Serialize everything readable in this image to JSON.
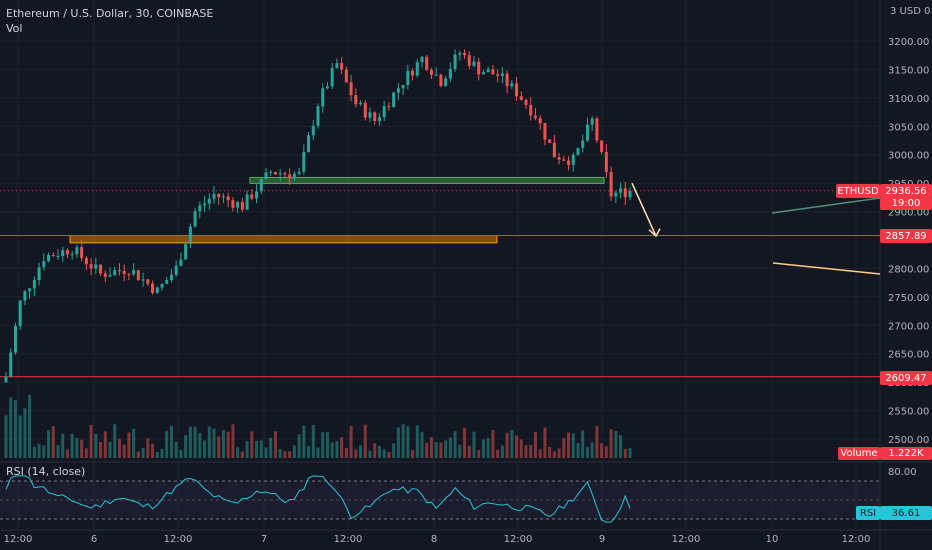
{
  "header": {
    "symbol_title": "Ethereum / U.S. Dollar, 30, COINBASE",
    "volume_label": "Vol",
    "currency_unit": "3 USD 0"
  },
  "rsi": {
    "title": "RSI (14, close)",
    "label": "RSI",
    "value": "36.61",
    "upper_level": "80.00"
  },
  "badges": {
    "symbol": "ETHUSD",
    "price": "2936.56",
    "countdown": "19:00",
    "volume_label": "Volume",
    "volume_value": "1.222K",
    "level_1": "2857.89",
    "level_2": "2609.47"
  },
  "colors": {
    "background": "#131722",
    "up": "#26a69a",
    "down": "#ef5350",
    "rsi_line": "#26c6da",
    "level_line": "#f23645",
    "zone_green": "#4caf50",
    "zone_orange": "#ff9800"
  },
  "chart_data": {
    "type": "candlestick",
    "title": "Ethereum / U.S. Dollar, 30, COINBASE",
    "x_tick_labels": [
      "12:00",
      "6",
      "12:00",
      "7",
      "12:00",
      "8",
      "12:00",
      "9",
      "12:00",
      "10",
      "12:00"
    ],
    "y_tick_labels": [
      "3200.00",
      "3150.00",
      "3100.00",
      "3050.00",
      "3000.00",
      "2950.00",
      "2900.00",
      "2800.00",
      "2750.00",
      "2700.00",
      "2650.00",
      "2600.00",
      "2550.00",
      "2500.00"
    ],
    "ylim": [
      2480,
      3260
    ],
    "last_price": 2936.56,
    "horizontal_levels": [
      2857.89,
      2609.47
    ],
    "zones": [
      {
        "low": 2952,
        "high": 2960,
        "color": "green"
      },
      {
        "low": 2845,
        "high": 2858,
        "color": "orange"
      }
    ],
    "price_path_approx": [
      {
        "t": 0,
        "close": 2610
      },
      {
        "t": 3,
        "close": 2740
      },
      {
        "t": 8,
        "close": 2820
      },
      {
        "t": 14,
        "close": 2835
      },
      {
        "t": 20,
        "close": 2790
      },
      {
        "t": 26,
        "close": 2800
      },
      {
        "t": 32,
        "close": 2760
      },
      {
        "t": 36,
        "close": 2800
      },
      {
        "t": 40,
        "close": 2900
      },
      {
        "t": 44,
        "close": 2930
      },
      {
        "t": 50,
        "close": 2910
      },
      {
        "t": 56,
        "close": 2970
      },
      {
        "t": 62,
        "close": 2965
      },
      {
        "t": 66,
        "close": 3090
      },
      {
        "t": 70,
        "close": 3160
      },
      {
        "t": 74,
        "close": 3090
      },
      {
        "t": 78,
        "close": 3060
      },
      {
        "t": 84,
        "close": 3130
      },
      {
        "t": 88,
        "close": 3170
      },
      {
        "t": 92,
        "close": 3130
      },
      {
        "t": 96,
        "close": 3180
      },
      {
        "t": 100,
        "close": 3150
      },
      {
        "t": 104,
        "close": 3140
      },
      {
        "t": 108,
        "close": 3110
      },
      {
        "t": 112,
        "close": 3070
      },
      {
        "t": 116,
        "close": 3000
      },
      {
        "t": 120,
        "close": 2990
      },
      {
        "t": 124,
        "close": 3060
      },
      {
        "t": 128,
        "close": 2930
      },
      {
        "t": 132,
        "close": 2937
      }
    ],
    "rsi_last": 36.61
  }
}
